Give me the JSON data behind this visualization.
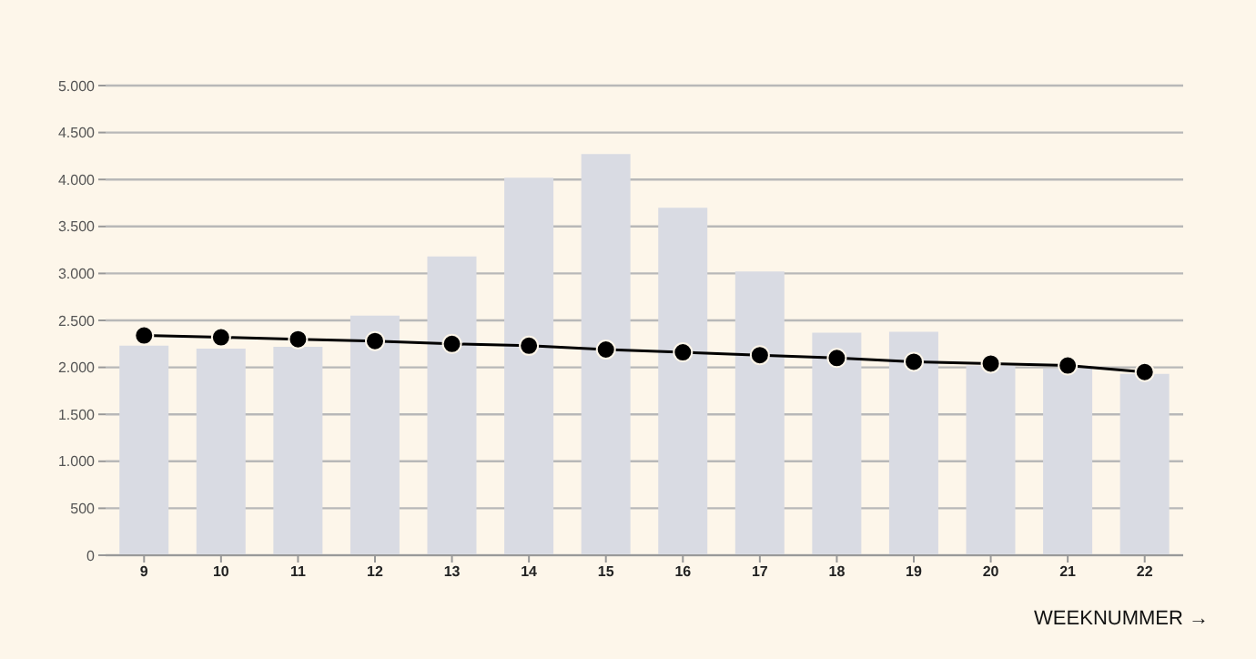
{
  "chart_data": {
    "type": "bar",
    "xlabel": "WEEKNUMMER →",
    "categories": [
      "9",
      "10",
      "11",
      "12",
      "13",
      "14",
      "15",
      "16",
      "17",
      "18",
      "19",
      "20",
      "21",
      "22"
    ],
    "series": [
      {
        "color": "#d9dbe3",
        "values": [
          2230,
          2200,
          2220,
          2550,
          3180,
          4020,
          4270,
          3700,
          3020,
          2370,
          2380,
          2020,
          1990,
          1930
        ]
      },
      {
        "type": "line",
        "color": "#000000",
        "values": [
          2340,
          2320,
          2300,
          2280,
          2250,
          2230,
          2190,
          2160,
          2130,
          2100,
          2060,
          2040,
          2020,
          1950
        ]
      }
    ],
    "ylim": [
      0,
      5000
    ],
    "yticks": [
      0,
      {
        "value": 500,
        "label": "500"
      },
      {
        "value": 1000,
        "label": "1.000"
      },
      {
        "value": 1500,
        "label": "1.500"
      },
      {
        "value": 2000,
        "label": "2.000"
      },
      {
        "value": 2500,
        "label": "2.500"
      },
      {
        "value": 3000,
        "label": "3.000"
      },
      {
        "value": 3500,
        "label": "3.500"
      },
      {
        "value": 4000,
        "label": "4.000"
      },
      {
        "value": 4500,
        "label": "4.500"
      },
      {
        "value": 5000,
        "label": "5.000"
      }
    ],
    "grid": "y",
    "marker": "circle",
    "line_style": "solid"
  }
}
